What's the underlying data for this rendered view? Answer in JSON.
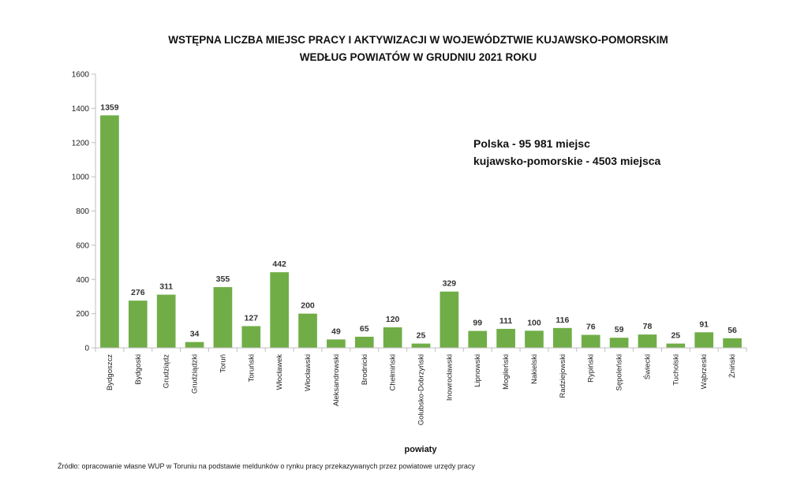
{
  "chart_data": {
    "type": "bar",
    "title": [
      "WSTĘPNA LICZBA MIEJSC PRACY I AKTYWIZACJI W WOJEWÓDZTWIE KUJAWSKO-POMORSKIM",
      "WEDŁUG POWIATÓW W GRUDNIU 2021 ROKU"
    ],
    "xlabel": "powiaty",
    "ylabel": "",
    "ylim": [
      0,
      1600
    ],
    "yticks": [
      0,
      200,
      400,
      600,
      800,
      1000,
      1200,
      1400,
      1600
    ],
    "grid": false,
    "bar_color": "#70ad47",
    "categories": [
      "Bydgoszcz",
      "Bydgoski",
      "Grudziądz",
      "Grudziądzki",
      "Toruń",
      "Toruński",
      "Włocławek",
      "Włocławski",
      "Aleksandrowski",
      "Brodnicki",
      "Chełmiński",
      "Golubsko-Dobrzyński",
      "Inowrocławski",
      "Lipnowski",
      "Mogileński",
      "Nakielski",
      "Radziejowski",
      "Rypiński",
      "Sępoleński",
      "Świecki",
      "Tucholski",
      "Wąbrzeski",
      "Żniński"
    ],
    "values": [
      1359,
      276,
      311,
      34,
      355,
      127,
      442,
      200,
      49,
      65,
      120,
      25,
      329,
      99,
      111,
      100,
      116,
      76,
      59,
      78,
      25,
      91,
      56
    ],
    "annotations": [
      "Polska - 95 981 miejsc",
      "kujawsko-pomorskie - 4503 miejsca"
    ]
  },
  "source": "Źródło: opracowanie własne WUP w Toruniu na podstawie meldunków o rynku pracy przekazywanych przez powiatowe urzędy pracy"
}
